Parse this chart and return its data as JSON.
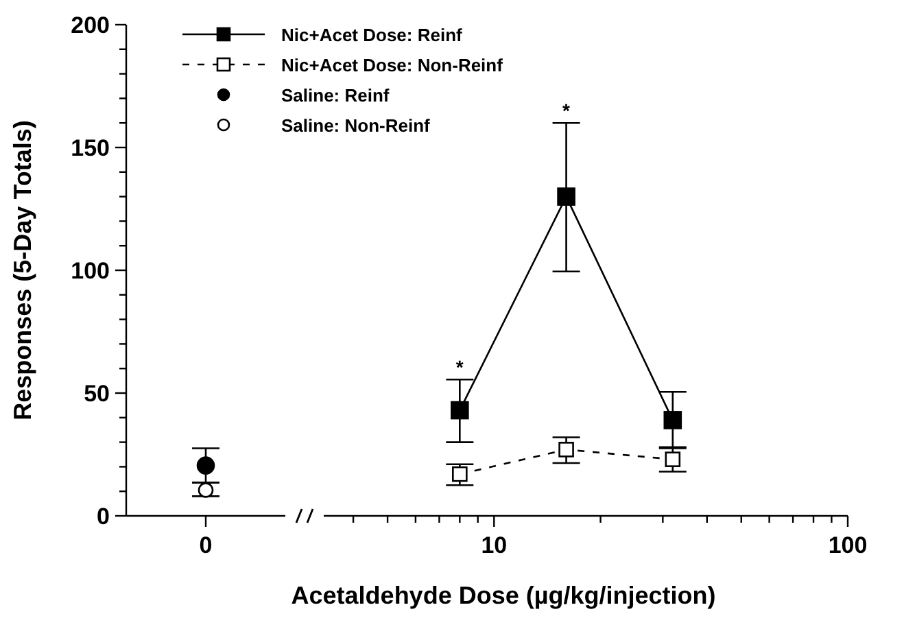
{
  "chart_data": [
    {
      "type": "scatter",
      "ylabel": "Responses (5-Day Totals)",
      "categories": [
        "0"
      ],
      "ylim": [
        0,
        200
      ],
      "yticks": [
        0,
        {
          "value": 10,
          "label": null
        },
        {
          "value": 20,
          "label": null
        },
        {
          "value": 30,
          "label": null
        },
        {
          "value": 40,
          "label": null
        },
        50,
        {
          "value": 60,
          "label": null
        },
        {
          "value": 70,
          "label": null
        },
        {
          "value": 80,
          "label": null
        },
        {
          "value": 90,
          "label": null
        },
        100,
        {
          "value": 110,
          "label": null
        },
        {
          "value": 120,
          "label": null
        },
        {
          "value": 130,
          "label": null
        },
        {
          "value": 140,
          "label": null
        },
        150,
        {
          "value": 160,
          "label": null
        },
        {
          "value": 170,
          "label": null
        },
        {
          "value": 180,
          "label": null
        },
        {
          "value": 190,
          "label": null
        },
        200
      ],
      "grid": false,
      "legend": "top right",
      "marker": "circle",
      "series": [
        {
          "name": "Saline: Reinf",
          "color": "#000000",
          "values": [
            20.5
          ],
          "errors": [
            [
              13.5,
              27.5
            ]
          ]
        },
        {
          "name": "Saline: Non-Reinf",
          "color": "#ffffff",
          "values": [
            10.5
          ],
          "errors": [
            [
              8,
              13.5
            ]
          ]
        }
      ]
    },
    {
      "type": "line",
      "xlabel": "Acetaldehyde Dose (µg/kg/injection)",
      "log": "x",
      "xlim": [
        3.3,
        100
      ],
      "xticks": [
        {
          "value": 4,
          "label": null
        },
        {
          "value": 5,
          "label": null
        },
        {
          "value": 6,
          "label": null
        },
        {
          "value": 7,
          "label": null
        },
        {
          "value": 8,
          "label": null
        },
        {
          "value": 9,
          "label": null
        },
        10,
        {
          "value": 20,
          "label": null
        },
        {
          "value": 30,
          "label": null
        },
        {
          "value": 40,
          "label": null
        },
        {
          "value": 50,
          "label": null
        },
        {
          "value": 60,
          "label": null
        },
        {
          "value": 70,
          "label": null
        },
        {
          "value": 80,
          "label": null
        },
        {
          "value": 90,
          "label": null
        },
        100
      ],
      "ylim": [
        0,
        200
      ],
      "tick_labels": "x",
      "grid": false,
      "legend": "top left",
      "marker": "square",
      "series": [
        {
          "name": "Nic+Acet Dose: Reinf",
          "line_style": "solid",
          "color": "#000000",
          "x": [
            8,
            16,
            32
          ],
          "values": [
            43,
            130,
            39
          ],
          "errors": [
            [
              30,
              55.5
            ],
            [
              99.5,
              160
            ],
            [
              27.5,
              50.5
            ]
          ]
        },
        {
          "name": "Nic+Acet Dose: Non-Reinf",
          "line_style": "dashed",
          "color": "#ffffff",
          "x": [
            8,
            16,
            32
          ],
          "values": [
            17,
            27,
            23
          ],
          "errors": [
            [
              12.5,
              21
            ],
            [
              21.5,
              32
            ],
            [
              18,
              28
            ]
          ]
        }
      ],
      "annotations": [
        {
          "text": "*",
          "x": 8,
          "y": 55.5
        },
        {
          "text": "*",
          "x": 16,
          "y": 160
        }
      ]
    }
  ]
}
